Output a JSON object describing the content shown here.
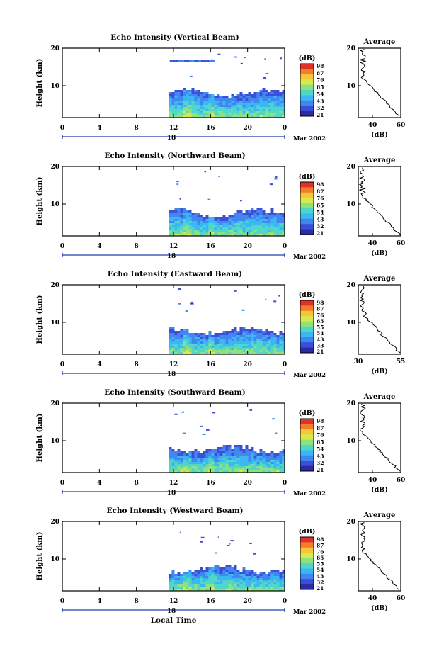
{
  "figure": {
    "xlabel": "Local Time",
    "date_label": "Mar 2002",
    "day_label": "18",
    "avg_title": "Average",
    "avg_xlabel": "(dB)",
    "colorbar_title": "(dB)"
  },
  "chart_data": [
    {
      "type": "heatmap",
      "title": "Echo Intensity (Vertical Beam)",
      "ylabel": "Height (km)",
      "xlim": [
        0,
        24
      ],
      "ylim": [
        1.5,
        20
      ],
      "xticks": [
        "0",
        "4",
        "8",
        "12",
        "16",
        "20",
        "0"
      ],
      "yticks": [
        "10",
        "20"
      ],
      "colorbar_ticks": [
        "98",
        "87",
        "76",
        "65",
        "54",
        "43",
        "32",
        "21"
      ],
      "data_start_hour": 11.5,
      "cloud_top_km": 8.5,
      "profile": {
        "xlim": [
          30,
          60
        ],
        "xticks": [
          "40",
          "60"
        ],
        "yticks": [
          "10",
          "20"
        ],
        "ylim": [
          1.5,
          20
        ]
      }
    },
    {
      "type": "heatmap",
      "title": "Echo Intensity (Northward Beam)",
      "ylabel": "Height (km)",
      "xlim": [
        0,
        24
      ],
      "ylim": [
        1.5,
        20
      ],
      "xticks": [
        "0",
        "4",
        "8",
        "12",
        "16",
        "20",
        "0"
      ],
      "yticks": [
        "10",
        "20"
      ],
      "colorbar_ticks": [
        "98",
        "87",
        "76",
        "65",
        "54",
        "43",
        "32",
        "21"
      ],
      "data_start_hour": 11.5,
      "cloud_top_km": 8.0,
      "profile": {
        "xlim": [
          30,
          60
        ],
        "xticks": [
          "40",
          "60"
        ],
        "yticks": [
          "10",
          "20"
        ],
        "ylim": [
          1.5,
          20
        ]
      }
    },
    {
      "type": "heatmap",
      "title": "Echo Intensity (Eastward Beam)",
      "ylabel": "Height (km)",
      "xlim": [
        0,
        24
      ],
      "ylim": [
        1.5,
        20
      ],
      "xticks": [
        "0",
        "4",
        "8",
        "12",
        "16",
        "20",
        "0"
      ],
      "yticks": [
        "10",
        "20"
      ],
      "colorbar_ticks": [
        "98",
        "87",
        "76",
        "65",
        "55",
        "54",
        "43",
        "33",
        "21"
      ],
      "data_start_hour": 11.5,
      "cloud_top_km": 8.0,
      "profile": {
        "xlim": [
          30,
          55
        ],
        "xticks": [
          "30",
          "55"
        ],
        "yticks": [
          "10",
          "20"
        ],
        "ylim": [
          1.5,
          20
        ]
      }
    },
    {
      "type": "heatmap",
      "title": "Echo Intensity (Southward Beam)",
      "ylabel": "Height (km)",
      "xlim": [
        0,
        24
      ],
      "ylim": [
        1.5,
        20
      ],
      "xticks": [
        "0",
        "4",
        "8",
        "12",
        "16",
        "20",
        "0"
      ],
      "yticks": [
        "10",
        "20"
      ],
      "colorbar_ticks": [
        "98",
        "87",
        "76",
        "65",
        "54",
        "43",
        "32",
        "21"
      ],
      "data_start_hour": 11.5,
      "cloud_top_km": 8.0,
      "profile": {
        "xlim": [
          30,
          60
        ],
        "xticks": [
          "40",
          "60"
        ],
        "yticks": [
          "10",
          "20"
        ],
        "ylim": [
          1.5,
          20
        ]
      }
    },
    {
      "type": "heatmap",
      "title": "Echo Intensity (Westward Beam)",
      "ylabel": "Height (km)",
      "xlim": [
        0,
        24
      ],
      "ylim": [
        1.5,
        20
      ],
      "xticks": [
        "0",
        "4",
        "8",
        "12",
        "16",
        "20",
        "0"
      ],
      "yticks": [
        "10",
        "20"
      ],
      "colorbar_ticks": [
        "98",
        "87",
        "76",
        "65",
        "55",
        "54",
        "43",
        "32",
        "21"
      ],
      "data_start_hour": 11.5,
      "cloud_top_km": 7.5,
      "profile": {
        "xlim": [
          30,
          60
        ],
        "xticks": [
          "40",
          "60"
        ],
        "yticks": [
          "10",
          "20"
        ],
        "ylim": [
          1.5,
          20
        ]
      }
    }
  ],
  "colors": {
    "colormap": [
      "#2b2ba3",
      "#3a4fd6",
      "#3f86f0",
      "#39b7f2",
      "#4fd6c8",
      "#8de27e",
      "#d8e94c",
      "#f6c53a",
      "#f57d2a",
      "#e0322a"
    ],
    "axis": "#000000",
    "day_bar": "#1a3fb0"
  }
}
